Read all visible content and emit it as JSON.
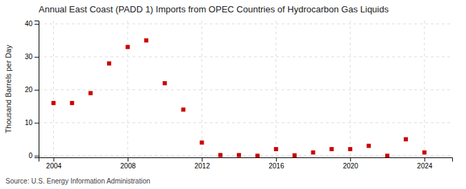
{
  "chart_data": {
    "type": "scatter",
    "title": "Annual East Coast (PADD 1) Imports from OPEC Countries of Hydrocarbon Gas Liquids",
    "y_label": "Thousand Barrels per Day",
    "annotations": [
      "Source: U.S. Energy Information Administration"
    ],
    "x": [
      2004,
      2005,
      2006,
      2007,
      2008,
      2009,
      2010,
      2011,
      2012,
      2013,
      2014,
      2015,
      2016,
      2017,
      2018,
      2019,
      2020,
      2021,
      2022,
      2023,
      2024
    ],
    "values": [
      16.0,
      16.0,
      19.0,
      28.0,
      33.0,
      35.0,
      22.0,
      14.0,
      4.0,
      0.2,
      0.2,
      0.0,
      2.0,
      0.1,
      1.0,
      2.0,
      2.0,
      3.0,
      0.0,
      5.0,
      1.0
    ],
    "color": "#cc0000",
    "marker": "square",
    "xlim": [
      2003.2,
      2025.5
    ],
    "ylim": [
      -0.5,
      41
    ],
    "xticks": [
      2004,
      2008,
      2012,
      2016,
      2020,
      2024
    ],
    "yticks": [
      0,
      10,
      20,
      30,
      40
    ],
    "grid": true
  }
}
